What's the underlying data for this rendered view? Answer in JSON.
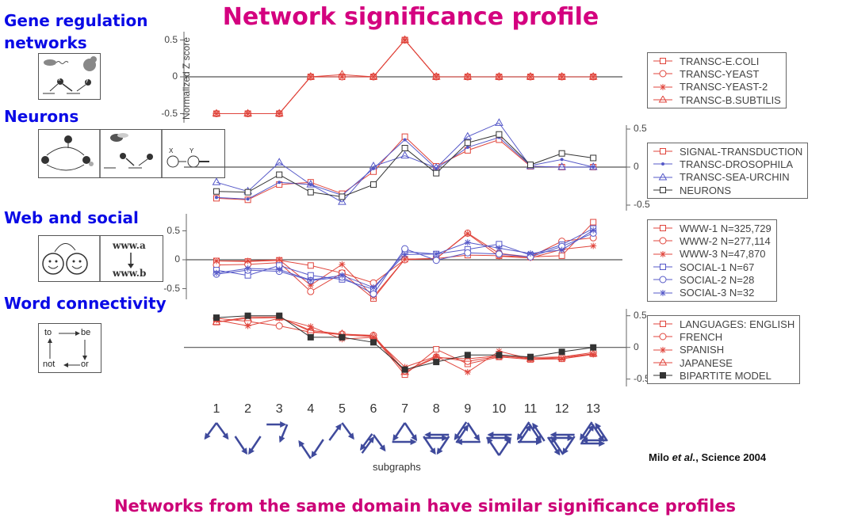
{
  "slide": {
    "title": "Network significance profile",
    "footer": "Networks from the same domain have similar significance profiles",
    "citation_author": "Milo ",
    "citation_etal": "et al.",
    "citation_rest": ", Science 2004"
  },
  "sections": [
    {
      "heading": "Gene regulation networks",
      "icon_text": [
        "x",
        "y"
      ]
    },
    {
      "heading": "Neurons",
      "icon_text": [
        "x",
        "y",
        "y",
        "x",
        "y",
        "X",
        "Y"
      ]
    },
    {
      "heading": "Web and social",
      "icon_text": [
        "www.a",
        "www.b"
      ]
    },
    {
      "heading": "Word connectivity",
      "icon_text": [
        "to",
        "be",
        "not",
        "or"
      ]
    }
  ],
  "colors": {
    "red": "#e0453c",
    "blue": "#5558c8",
    "black": "#333333",
    "title": "#d4007f",
    "heading": "#0a0ae6"
  },
  "chart_data": [
    {
      "type": "line",
      "ylabel": "Normalized Z score",
      "xlabel": "subgraphs",
      "categories": [
        "1",
        "2",
        "3",
        "4",
        "5",
        "6",
        "7",
        "8",
        "9",
        "10",
        "11",
        "12",
        "13"
      ],
      "yticks": [
        "0.5",
        "0",
        "-0.5"
      ],
      "ylim": [
        -0.6,
        0.6
      ],
      "series": [
        {
          "name": "TRANSC-E.COLI",
          "color": "red",
          "marker": "square",
          "values": [
            -0.5,
            -0.5,
            -0.5,
            0,
            0,
            0,
            0.5,
            0,
            0,
            0,
            0,
            0,
            0
          ]
        },
        {
          "name": "TRANSC-YEAST",
          "color": "red",
          "marker": "circle",
          "values": [
            -0.5,
            -0.5,
            -0.5,
            0,
            0,
            0,
            0.5,
            0,
            0,
            0,
            0,
            0,
            0
          ]
        },
        {
          "name": "TRANSC-YEAST-2",
          "color": "red",
          "marker": "star",
          "values": [
            -0.5,
            -0.5,
            -0.5,
            0,
            0,
            0,
            0.5,
            0,
            0,
            0,
            0,
            0,
            0
          ]
        },
        {
          "name": "TRANSC-B.SUBTILIS",
          "color": "red",
          "marker": "triangle",
          "values": [
            -0.5,
            -0.5,
            -0.5,
            0,
            0.03,
            0,
            0.5,
            0,
            0,
            0,
            0,
            0,
            0
          ]
        }
      ]
    },
    {
      "type": "line",
      "categories": [
        "1",
        "2",
        "3",
        "4",
        "5",
        "6",
        "7",
        "8",
        "9",
        "10",
        "11",
        "12",
        "13"
      ],
      "yticks": [
        "0.5",
        "0",
        "-0.5"
      ],
      "ylim": [
        -0.6,
        0.6
      ],
      "series": [
        {
          "name": "SIGNAL-TRANSDUCTION",
          "color": "red",
          "marker": "square",
          "values": [
            -0.41,
            -0.43,
            -0.23,
            -0.2,
            -0.35,
            -0.06,
            0.4,
            0.01,
            0.22,
            0.36,
            0.01,
            0,
            0
          ]
        },
        {
          "name": "TRANSC-DROSOPHILA",
          "color": "blue",
          "marker": "dot",
          "values": [
            -0.4,
            -0.42,
            -0.2,
            -0.23,
            -0.37,
            -0.02,
            0.36,
            -0.02,
            0.26,
            0.39,
            0.02,
            0.1,
            0
          ]
        },
        {
          "name": "TRANSC-SEA-URCHIN",
          "color": "blue",
          "marker": "triangle",
          "values": [
            -0.2,
            -0.32,
            0.06,
            -0.23,
            -0.46,
            0.01,
            0.15,
            -0.01,
            0.4,
            0.58,
            0.01,
            0,
            0
          ]
        },
        {
          "name": "NEURONS",
          "color": "black",
          "marker": "square",
          "values": [
            -0.32,
            -0.33,
            -0.1,
            -0.33,
            -0.39,
            -0.23,
            0.25,
            -0.08,
            0.32,
            0.43,
            0.03,
            0.18,
            0.12
          ]
        }
      ]
    },
    {
      "type": "line",
      "categories": [
        "1",
        "2",
        "3",
        "4",
        "5",
        "6",
        "7",
        "8",
        "9",
        "10",
        "11",
        "12",
        "13"
      ],
      "yticks": [
        "0.5",
        "0",
        "-0.5"
      ],
      "ylim": [
        -0.7,
        0.7
      ],
      "series": [
        {
          "name": "WWW-1 N=325,729",
          "color": "red",
          "marker": "square",
          "values": [
            -0.02,
            -0.03,
            -0.01,
            -0.1,
            -0.23,
            -0.67,
            0.01,
            0.02,
            0.08,
            0.07,
            0.05,
            0.07,
            0.65
          ]
        },
        {
          "name": "WWW-2 N=277,114",
          "color": "red",
          "marker": "circle",
          "values": [
            -0.09,
            -0.08,
            -0.05,
            -0.55,
            -0.23,
            -0.4,
            0,
            0.02,
            0.46,
            0.11,
            0.05,
            0.32,
            0.38
          ]
        },
        {
          "name": "WWW-3 N=47,870",
          "color": "red",
          "marker": "star",
          "values": [
            -0.02,
            -0.02,
            0,
            -0.44,
            -0.08,
            -0.64,
            0.01,
            0.02,
            0.45,
            0.06,
            0.03,
            0.18,
            0.24
          ]
        },
        {
          "name": "SOCIAL-1 N=67",
          "color": "blue",
          "marker": "square",
          "values": [
            -0.18,
            -0.27,
            -0.1,
            -0.27,
            -0.34,
            -0.51,
            0.14,
            0.1,
            0.18,
            0.27,
            0.08,
            0.26,
            0.54
          ]
        },
        {
          "name": "SOCIAL-2 N=28",
          "color": "blue",
          "marker": "circle",
          "values": [
            -0.25,
            -0.18,
            -0.2,
            -0.36,
            -0.3,
            -0.59,
            0.19,
            -0.01,
            0.12,
            0.1,
            0.05,
            0.23,
            0.46
          ]
        },
        {
          "name": "SOCIAL-3 N=32",
          "color": "blue",
          "marker": "star",
          "values": [
            -0.23,
            -0.15,
            -0.17,
            -0.35,
            -0.27,
            -0.48,
            0.09,
            0.1,
            0.3,
            0.2,
            0.11,
            0.17,
            0.51
          ]
        }
      ]
    },
    {
      "type": "line",
      "categories": [
        "1",
        "2",
        "3",
        "4",
        "5",
        "6",
        "7",
        "8",
        "9",
        "10",
        "11",
        "12",
        "13"
      ],
      "yticks": [
        "0.5",
        "0",
        "-0.5"
      ],
      "ylim": [
        -0.6,
        0.6
      ],
      "series": [
        {
          "name": "LANGUAGES: ENGLISH",
          "color": "red",
          "marker": "square",
          "values": [
            0.4,
            0.48,
            0.48,
            0.25,
            0.2,
            0.17,
            -0.43,
            -0.03,
            -0.26,
            -0.15,
            -0.19,
            -0.18,
            -0.1
          ]
        },
        {
          "name": "FRENCH",
          "color": "red",
          "marker": "circle",
          "values": [
            0.46,
            0.41,
            0.34,
            0.24,
            0.21,
            0.19,
            -0.37,
            -0.15,
            -0.22,
            -0.14,
            -0.16,
            -0.15,
            -0.08
          ]
        },
        {
          "name": "SPANISH",
          "color": "red",
          "marker": "star",
          "values": [
            0.43,
            0.34,
            0.46,
            0.33,
            0.13,
            0.16,
            -0.31,
            -0.14,
            -0.39,
            -0.06,
            -0.18,
            -0.18,
            -0.11
          ]
        },
        {
          "name": "JAPANESE",
          "color": "red",
          "marker": "triangle",
          "values": [
            0.4,
            0.46,
            0.47,
            0.27,
            0.21,
            0.18,
            -0.39,
            -0.16,
            -0.18,
            -0.13,
            -0.18,
            -0.16,
            -0.1
          ]
        },
        {
          "name": "BIPARTITE MODEL",
          "color": "black",
          "marker": "filled-square",
          "values": [
            0.47,
            0.5,
            0.5,
            0.16,
            0.16,
            0.08,
            -0.35,
            -0.23,
            -0.12,
            -0.12,
            -0.15,
            -0.07,
            0
          ]
        }
      ]
    }
  ]
}
